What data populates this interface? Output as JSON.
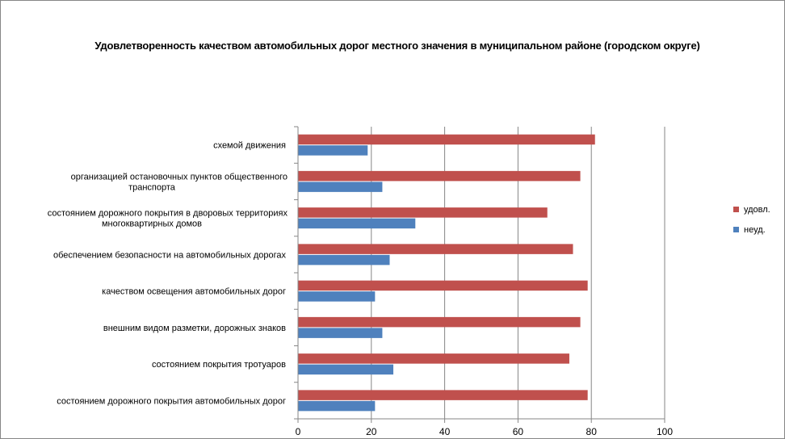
{
  "chart_data": {
    "type": "bar",
    "orientation": "horizontal",
    "title": "Удовлетворенность качеством автомобильных дорог местного значения в муниципальном районе (городском округе)",
    "categories": [
      [
        "схемой движения "
      ],
      [
        "организацией остановочных пунктов общественного",
        "транспорта"
      ],
      [
        "состоянием дорожного покрытия в дворовых территориях",
        "многоквартирных домов"
      ],
      [
        "обеспечением  безопасности на автомобильных дорогах"
      ],
      [
        "качеством  освещения  автомобильных дорог"
      ],
      [
        "внешним  видом разметки, дорожных знаков"
      ],
      [
        "состоянием  покрытия тротуаров"
      ],
      [
        "состоянием дорожного покрытия автомобильных дорог"
      ]
    ],
    "series": [
      {
        "name": "удовл.",
        "color": "#c0504d",
        "values": [
          81,
          77,
          68,
          75,
          79,
          77,
          74,
          79
        ]
      },
      {
        "name": "неуд.",
        "color": "#4f81bd",
        "values": [
          19,
          23,
          32,
          25,
          21,
          23,
          26,
          21
        ]
      }
    ],
    "xlim": [
      0,
      100
    ],
    "xticks": [
      0,
      20,
      40,
      60,
      80,
      100
    ],
    "grid": "vertical",
    "legend_position": "right",
    "gridline_color": "#868686"
  }
}
